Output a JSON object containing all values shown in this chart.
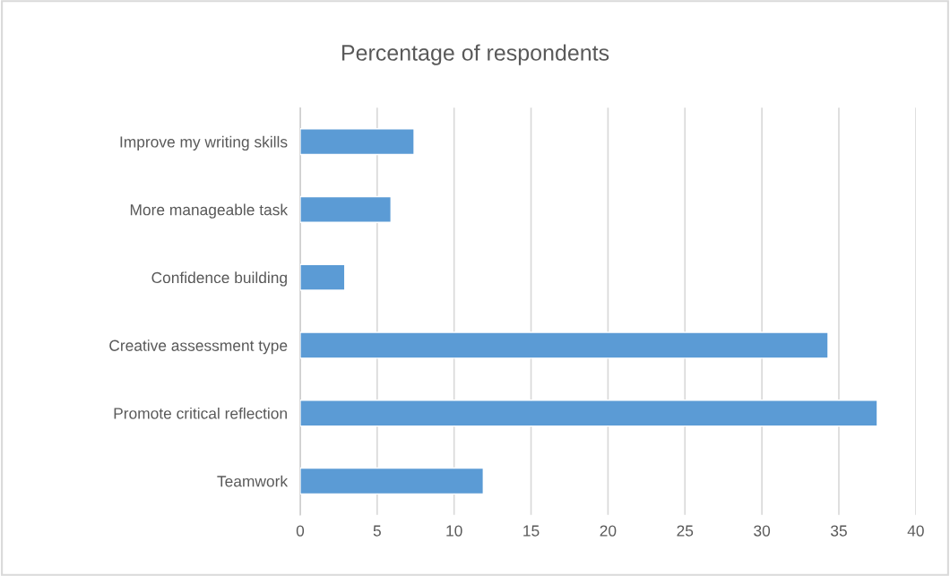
{
  "chart_data": {
    "type": "bar",
    "orientation": "horizontal",
    "title": "Percentage of respondents",
    "categories": [
      "Improve my writing skills",
      "More manageable task",
      "Confidence building",
      "Creative assessment type",
      "Promote critical reflection",
      "Teamwork"
    ],
    "values": [
      7.4,
      5.9,
      2.9,
      34.3,
      37.5,
      11.9
    ],
    "color": "#5b9bd5",
    "xlim": [
      0,
      40
    ],
    "xticks": [
      0,
      5,
      10,
      15,
      20,
      25,
      30,
      35,
      40
    ],
    "grid": "x",
    "legend": false
  }
}
